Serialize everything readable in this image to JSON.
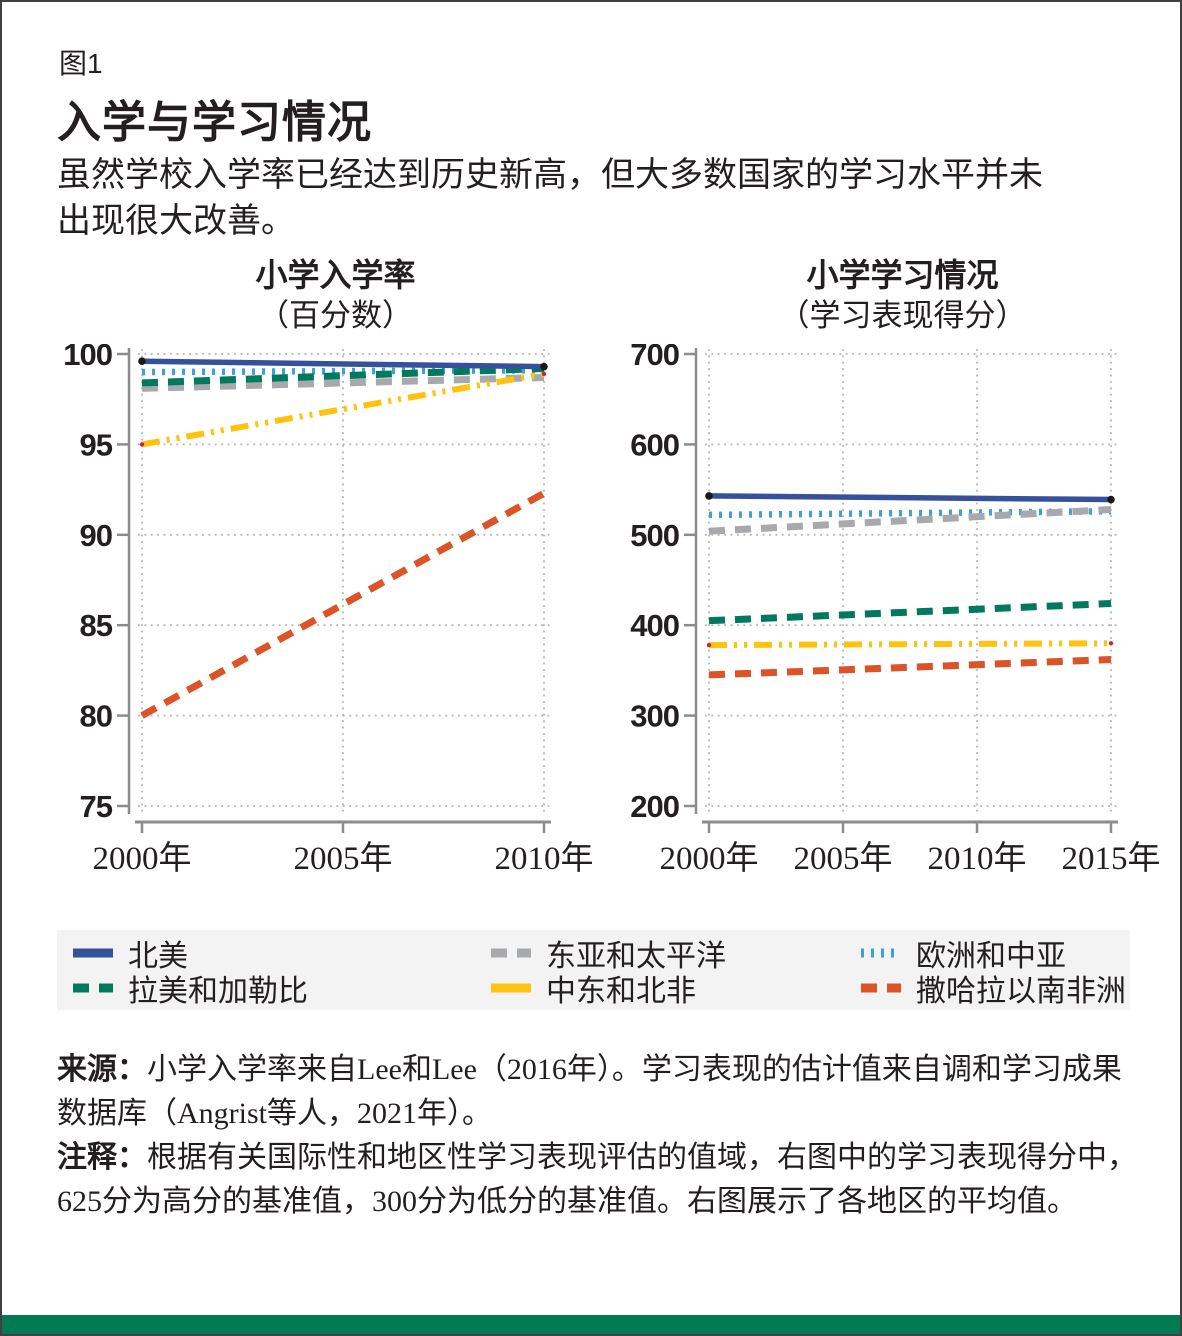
{
  "figure_label": "图1",
  "title": "入学与学习情况",
  "subtitle": "虽然学校入学率已经达到历史新高，但大多数国家的学习水平并未\n出现很大改善。",
  "colors": {
    "accent_bar": "#007A52",
    "legend_bg": "#F3F3F3",
    "north_america": "#35519C",
    "east_asia_pacific": "#A7A9AC",
    "europe_central_asia": "#3FA0DA",
    "latin_america_caribbean": "#00795C",
    "middle_east_north_africa": "#FFC20E",
    "sub_saharan_africa": "#DC5327",
    "grid": "#B3B3B3",
    "axis": "#8A8C8E",
    "text": "#231F20"
  },
  "chart_data": [
    {
      "type": "line",
      "title": "小学入学率",
      "subtitle": "（百分数）",
      "xlim": [
        2000,
        2010
      ],
      "x_ticks": [
        2000,
        2005,
        2010
      ],
      "x_tick_labels": [
        "2000年",
        "2005年",
        "2010年"
      ],
      "ylim": [
        75,
        100
      ],
      "y_ticks": [
        100,
        95,
        90,
        85,
        80,
        75
      ],
      "grid": true,
      "legend_position": "bottom",
      "series": [
        {
          "name": "欧洲和中亚",
          "color": "#3FA0DA",
          "style": "dotted",
          "x": [
            2000,
            2010
          ],
          "values": [
            99.0,
            99.1
          ]
        },
        {
          "name": "东亚和太平洋",
          "color": "#A7A9AC",
          "style": "dashed",
          "x": [
            2000,
            2010
          ],
          "values": [
            98.1,
            98.7
          ]
        },
        {
          "name": "中东和北非",
          "color": "#FFC20E",
          "style": "dash-dot-dot",
          "x": [
            2000,
            2010
          ],
          "values": [
            95.0,
            98.9
          ],
          "endpoint_marker": {
            "color": "#C9234A",
            "r": 2.2
          }
        },
        {
          "name": "撒哈拉以南非洲",
          "color": "#DC5327",
          "style": "dashed",
          "x": [
            2000,
            2010
          ],
          "values": [
            80.0,
            92.3
          ]
        },
        {
          "name": "拉美和加勒比",
          "color": "#00795C",
          "style": "dashed",
          "x": [
            2000,
            2010
          ],
          "values": [
            98.4,
            99.2
          ]
        },
        {
          "name": "北美",
          "color": "#35519C",
          "style": "solid",
          "x": [
            2000,
            2010
          ],
          "values": [
            99.6,
            99.3
          ],
          "endpoint_marker": {
            "color": "#1A1A1A",
            "r": 3.8
          }
        }
      ]
    },
    {
      "type": "line",
      "title": "小学学习情况",
      "subtitle": "（学习表现得分）",
      "xlim": [
        2000,
        2015
      ],
      "x_ticks": [
        2000,
        2005,
        2010,
        2015
      ],
      "x_tick_labels": [
        "2000年",
        "2005年",
        "2010年",
        "2015年"
      ],
      "ylim": [
        200,
        700
      ],
      "y_ticks": [
        700,
        600,
        500,
        400,
        300,
        200
      ],
      "grid": true,
      "legend_position": "bottom",
      "series": [
        {
          "name": "欧洲和中亚",
          "color": "#3FA0DA",
          "style": "dotted",
          "x": [
            2000,
            2015
          ],
          "values": [
            522,
            526
          ]
        },
        {
          "name": "东亚和太平洋",
          "color": "#A7A9AC",
          "style": "dashed",
          "x": [
            2000,
            2015
          ],
          "values": [
            504,
            528
          ]
        },
        {
          "name": "中东和北非",
          "color": "#FFC20E",
          "style": "dash-dot-dot",
          "x": [
            2000,
            2015
          ],
          "values": [
            378,
            380
          ],
          "endpoint_marker": {
            "color": "#C9234A",
            "r": 2.2
          }
        },
        {
          "name": "撒哈拉以南非洲",
          "color": "#DC5327",
          "style": "dashed",
          "x": [
            2000,
            2015
          ],
          "values": [
            345,
            362
          ]
        },
        {
          "name": "拉美和加勒比",
          "color": "#00795C",
          "style": "dashed",
          "x": [
            2000,
            2015
          ],
          "values": [
            405,
            424
          ]
        },
        {
          "name": "北美",
          "color": "#35519C",
          "style": "solid",
          "x": [
            2000,
            2015
          ],
          "values": [
            543,
            539
          ],
          "endpoint_marker": {
            "color": "#1A1A1A",
            "r": 3.8
          }
        }
      ]
    }
  ],
  "legend": {
    "items": [
      {
        "label": "北美",
        "color": "#35519C",
        "style": "solid"
      },
      {
        "label": "东亚和太平洋",
        "color": "#A7A9AC",
        "style": "dashed"
      },
      {
        "label": "欧洲和中亚",
        "color": "#3FA0DA",
        "style": "dotted"
      },
      {
        "label": "拉美和加勒比",
        "color": "#00795C",
        "style": "dashed"
      },
      {
        "label": "中东和北非",
        "color": "#FFC20E",
        "style": "dash-dot-dot"
      },
      {
        "label": "撒哈拉以南非洲",
        "color": "#DC5327",
        "style": "dashed"
      }
    ]
  },
  "notes": {
    "source_label": "来源：",
    "source_text": "小学入学率来自Lee和Lee（2016年）。学习表现的估计值来自调和学习成果\n数据库（Angrist等人，2021年）。",
    "note_label": "注释：",
    "note_text": "根据有关国际性和地区性学习表现评估的值域，右图中的学习表现得分中，\n625分为高分的基准值，300分为低分的基准值。右图展示了各地区的平均值。"
  }
}
